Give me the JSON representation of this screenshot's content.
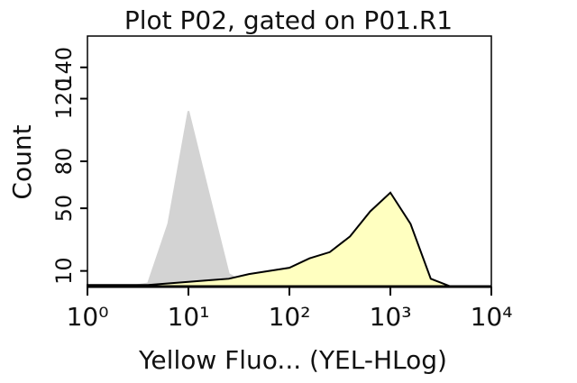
{
  "chart_data": {
    "type": "area",
    "title": "Plot P02, gated on P01.R1",
    "x_label": "Yellow Fluo... (YEL-HLog)",
    "y_label": "Count",
    "x_scale": "log",
    "x": [
      1,
      1.58,
      2.51,
      3.98,
      6.31,
      10,
      15.8,
      25.1,
      39.8,
      63.1,
      100,
      158,
      251,
      398,
      631,
      1000,
      1585,
      2512,
      3981,
      6310,
      10000
    ],
    "series": [
      {
        "color": "#d3d3d3",
        "values": [
          0,
          0,
          0,
          2,
          40,
          112,
          60,
          8,
          1,
          0,
          0,
          0,
          0,
          0,
          0,
          0,
          0,
          0,
          0,
          0,
          0
        ]
      },
      {
        "color": "#ffffc0",
        "values": [
          1,
          1,
          1,
          1,
          2,
          3,
          4,
          5,
          8,
          10,
          12,
          18,
          22,
          32,
          48,
          60,
          40,
          5,
          0,
          0,
          0
        ]
      }
    ],
    "xlim": [
      1,
      10000
    ],
    "xticks": [
      {
        "value": 1,
        "label": "10⁰"
      },
      {
        "value": 10,
        "label": "10¹"
      },
      {
        "value": 100,
        "label": "10²"
      },
      {
        "value": 1000,
        "label": "10³"
      },
      {
        "value": 10000,
        "label": "10⁴"
      }
    ],
    "ylim": [
      0,
      160
    ],
    "yticks": [
      10,
      50,
      80,
      120,
      140
    ]
  }
}
